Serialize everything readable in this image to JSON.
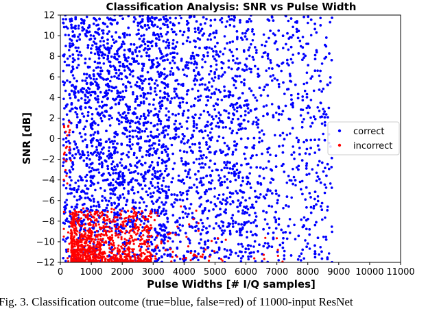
{
  "chart_data": {
    "type": "scatter",
    "title": "Classification Analysis: SNR vs Pulse Width",
    "xlabel": "Pulse Widths [# I/Q samples]",
    "ylabel": "SNR [dB]",
    "xlim": [
      0,
      11000
    ],
    "ylim": [
      -12,
      12
    ],
    "xticks": [
      0,
      1000,
      2000,
      3000,
      4000,
      5000,
      6000,
      7000,
      8000,
      9000,
      10000,
      11000
    ],
    "yticks": [
      -12,
      -10,
      -8,
      -6,
      -4,
      -2,
      0,
      2,
      4,
      6,
      8,
      10,
      12
    ],
    "grid": false,
    "legend_position": "right-middle",
    "series": [
      {
        "name": "correct",
        "color": "#0000ff",
        "description_x_range": [
          100,
          8800
        ],
        "description_y_range": [
          -12,
          12
        ],
        "density_peak_x": [
          300,
          3500
        ]
      },
      {
        "name": "incorrect",
        "color": "#ff0000",
        "description_x_range": [
          50,
          7500
        ],
        "description_y_range": [
          -12,
          2
        ],
        "density_peak_x": [
          300,
          2500
        ],
        "density_peak_y": [
          -12,
          -8
        ]
      }
    ]
  },
  "caption": "Fig. 3.  Classification outcome (true=blue, false=red) of 11000-input ResNet"
}
